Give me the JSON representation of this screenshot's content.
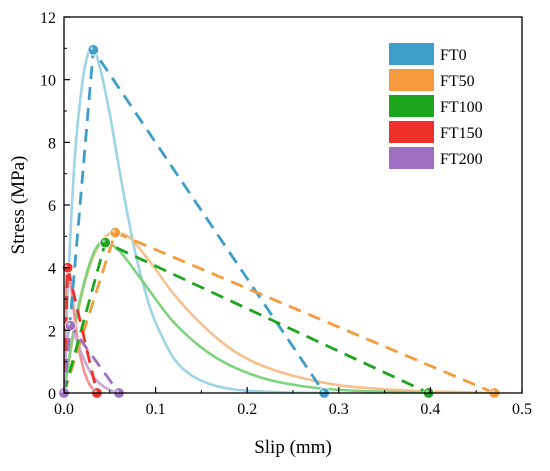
{
  "chart_data": {
    "type": "line",
    "xlabel": "Slip (mm)",
    "ylabel": "Stress (MPa)",
    "xlim": [
      0,
      0.5
    ],
    "ylim": [
      0,
      12
    ],
    "x_ticks": [
      "0.0",
      "0.1",
      "0.2",
      "0.3",
      "0.4",
      "0.5"
    ],
    "y_ticks": [
      "0",
      "2",
      "4",
      "6",
      "8",
      "10",
      "12"
    ],
    "legend_position": "top-right",
    "series": [
      {
        "name": "FT0",
        "color": "#3d9ec9",
        "fit_color": "#9dd4e6",
        "points": [
          [
            0,
            0
          ],
          [
            0.032,
            10.95
          ],
          [
            0.284,
            0
          ]
        ],
        "fit_curve": [
          [
            0,
            0
          ],
          [
            0.005,
            3.8
          ],
          [
            0.012,
            7.6
          ],
          [
            0.02,
            9.9
          ],
          [
            0.026,
            10.8
          ],
          [
            0.032,
            11.0
          ],
          [
            0.04,
            10.3
          ],
          [
            0.05,
            8.9
          ],
          [
            0.06,
            7.2
          ],
          [
            0.07,
            5.6
          ],
          [
            0.08,
            4.2
          ],
          [
            0.09,
            3.1
          ],
          [
            0.1,
            2.25
          ],
          [
            0.12,
            1.1
          ],
          [
            0.14,
            0.55
          ],
          [
            0.16,
            0.28
          ],
          [
            0.18,
            0.14
          ],
          [
            0.2,
            0.07
          ],
          [
            0.24,
            0.02
          ],
          [
            0.284,
            0
          ]
        ]
      },
      {
        "name": "FT50",
        "color": "#f39b3d",
        "fit_color": "#f5c08d",
        "points": [
          [
            0,
            0
          ],
          [
            0.056,
            5.12
          ],
          [
            0.47,
            0
          ]
        ],
        "fit_curve": [
          [
            0,
            0
          ],
          [
            0.01,
            1.8
          ],
          [
            0.02,
            3.2
          ],
          [
            0.03,
            4.2
          ],
          [
            0.04,
            4.8
          ],
          [
            0.05,
            5.1
          ],
          [
            0.056,
            5.15
          ],
          [
            0.07,
            5.0
          ],
          [
            0.08,
            4.7
          ],
          [
            0.1,
            3.95
          ],
          [
            0.12,
            3.15
          ],
          [
            0.15,
            2.2
          ],
          [
            0.18,
            1.45
          ],
          [
            0.21,
            0.95
          ],
          [
            0.25,
            0.55
          ],
          [
            0.3,
            0.25
          ],
          [
            0.35,
            0.12
          ],
          [
            0.4,
            0.05
          ],
          [
            0.47,
            0
          ]
        ]
      },
      {
        "name": "FT100",
        "color": "#1da61d",
        "fit_color": "#7ed37e",
        "points": [
          [
            0,
            0
          ],
          [
            0.045,
            4.8
          ],
          [
            0.398,
            0
          ]
        ],
        "fit_curve": [
          [
            0,
            0
          ],
          [
            0.01,
            1.9
          ],
          [
            0.02,
            3.3
          ],
          [
            0.03,
            4.3
          ],
          [
            0.038,
            4.75
          ],
          [
            0.045,
            4.82
          ],
          [
            0.06,
            4.55
          ],
          [
            0.08,
            3.8
          ],
          [
            0.1,
            3.0
          ],
          [
            0.12,
            2.25
          ],
          [
            0.15,
            1.45
          ],
          [
            0.18,
            0.9
          ],
          [
            0.22,
            0.45
          ],
          [
            0.26,
            0.22
          ],
          [
            0.3,
            0.1
          ],
          [
            0.35,
            0.04
          ],
          [
            0.398,
            0
          ]
        ]
      },
      {
        "name": "FT150",
        "color": "#f0302a",
        "fit_color": "#f38f95",
        "points": [
          [
            0,
            0
          ],
          [
            0.004,
            4.0
          ],
          [
            0.036,
            0
          ]
        ],
        "fit_curve": [
          [
            0,
            0
          ],
          [
            0.001,
            2.2
          ],
          [
            0.002,
            3.3
          ],
          [
            0.004,
            4.0
          ],
          [
            0.006,
            3.8
          ],
          [
            0.009,
            3.1
          ],
          [
            0.012,
            2.3
          ],
          [
            0.016,
            1.5
          ],
          [
            0.02,
            0.9
          ],
          [
            0.025,
            0.45
          ],
          [
            0.03,
            0.18
          ],
          [
            0.036,
            0
          ]
        ]
      },
      {
        "name": "FT200",
        "color": "#a070c0",
        "fit_color": "#c8a6d6",
        "points": [
          [
            0,
            0
          ],
          [
            0.007,
            2.15
          ],
          [
            0.06,
            0
          ]
        ],
        "fit_curve": [
          [
            0,
            0
          ],
          [
            0.002,
            1.2
          ],
          [
            0.004,
            1.8
          ],
          [
            0.007,
            2.15
          ],
          [
            0.01,
            2.0
          ],
          [
            0.015,
            1.6
          ],
          [
            0.02,
            1.2
          ],
          [
            0.03,
            0.6
          ],
          [
            0.04,
            0.28
          ],
          [
            0.05,
            0.1
          ],
          [
            0.06,
            0
          ]
        ]
      }
    ]
  }
}
